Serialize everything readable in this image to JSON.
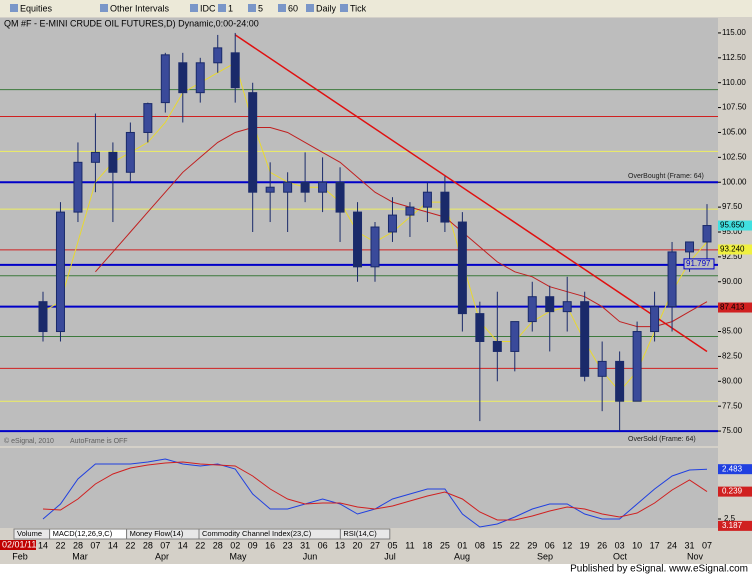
{
  "toolbar": {
    "items": [
      "Equities",
      "Other Intervals",
      "IDC",
      "1",
      "5",
      "60",
      "Daily",
      "Tick"
    ]
  },
  "chart_data": {
    "type": "candlestick",
    "title": "QM #F - E-MINI CRUDE OIL FUTURES,D) Dynamic,0:00-24:00",
    "categories": [
      "14",
      "22",
      "28",
      "07",
      "14",
      "22",
      "28",
      "07",
      "14",
      "22",
      "28",
      "02",
      "09",
      "16",
      "23",
      "31",
      "06",
      "13",
      "20",
      "27",
      "05",
      "11",
      "18",
      "25",
      "01",
      "08",
      "15",
      "22",
      "29",
      "06",
      "12",
      "19",
      "26",
      "03",
      "10",
      "17",
      "24",
      "31",
      "07"
    ],
    "months": [
      "Feb",
      "Mar",
      "Apr",
      "May",
      "Jun",
      "Jul",
      "Aug",
      "Sep",
      "Oct",
      "Nov"
    ],
    "cursor_date": "02/01/11",
    "open": [
      88,
      85,
      97,
      102,
      103,
      101,
      105,
      108,
      112,
      109,
      112,
      113,
      109,
      99,
      99,
      100,
      99,
      100,
      97,
      91.5,
      95,
      96.7,
      97.5,
      99,
      96,
      86.8,
      84,
      83,
      86,
      88.5,
      87,
      88,
      80.5,
      82,
      78,
      85,
      87.5,
      93,
      94
    ],
    "high": [
      89,
      98,
      104,
      106.9,
      104,
      106,
      108,
      113,
      113,
      112.5,
      114.8,
      115,
      110,
      102,
      101,
      103,
      102.5,
      101.5,
      98,
      96,
      98.5,
      98,
      100,
      100.6,
      97,
      88,
      89,
      86,
      90,
      89.6,
      90.5,
      89,
      84,
      83,
      86,
      89,
      94,
      94,
      97.8
    ],
    "low": [
      84,
      84,
      96,
      99,
      96,
      100,
      104,
      107,
      106,
      108,
      111,
      108,
      95,
      96,
      95,
      98,
      97,
      94,
      90,
      90,
      94,
      94.5,
      96,
      95,
      85,
      76,
      80,
      81,
      85,
      83,
      85,
      80,
      77,
      75,
      78,
      84,
      85,
      91,
      92
    ],
    "close": [
      85,
      97,
      102,
      103,
      101,
      105,
      107.9,
      112.8,
      109,
      112,
      113.5,
      109.5,
      99,
      99.5,
      100,
      99,
      100,
      97,
      91.5,
      95.5,
      96.7,
      97.5,
      99,
      96,
      86.8,
      84,
      83,
      86,
      88.5,
      87,
      88,
      80.5,
      82,
      78,
      85,
      87.5,
      93,
      94,
      95.65
    ],
    "series": [
      {
        "name": "MA fast",
        "color": "#e8d830",
        "values": [
          87,
          88,
          94,
          100,
          102,
          103,
          104,
          106,
          109,
          110,
          111,
          112,
          106,
          101,
          100,
          99.5,
          99.5,
          98,
          95,
          94,
          95,
          96.5,
          98,
          98,
          92,
          86,
          84,
          84,
          86,
          87,
          87.5,
          84,
          81,
          79,
          81,
          85,
          89,
          92,
          94
        ]
      },
      {
        "name": "MA slow",
        "color": "#c02020",
        "values": [
          null,
          null,
          null,
          91,
          93,
          95,
          97,
          99,
          101,
          102.5,
          104,
          105,
          105.5,
          105.5,
          105,
          104,
          103,
          102,
          100.5,
          99,
          98,
          97.5,
          97,
          96.5,
          95,
          93.5,
          92,
          91,
          90.5,
          89.5,
          89,
          88.5,
          87.5,
          86,
          85.5,
          85.5,
          86,
          87,
          88
        ]
      }
    ],
    "trendline": {
      "color": "#e01010",
      "start": [
        11,
        114.8
      ],
      "end": [
        38,
        83
      ]
    },
    "levels": [
      {
        "value": 109.3,
        "color": "#3c7a3c"
      },
      {
        "value": 106.6,
        "color": "#d02020"
      },
      {
        "value": 103.1,
        "color": "#eeee60"
      },
      {
        "value": 100,
        "color": "#0000c8"
      },
      {
        "value": 97.3,
        "color": "#eeee60"
      },
      {
        "value": 93.2,
        "color": "#d02020"
      },
      {
        "value": 91.7,
        "color": "#0000c8"
      },
      {
        "value": 90.6,
        "color": "#3c7a3c"
      },
      {
        "value": 87.5,
        "color": "#0000c8"
      },
      {
        "value": 84.5,
        "color": "#3c7a3c"
      },
      {
        "value": 81.3,
        "color": "#d02020"
      },
      {
        "value": 78,
        "color": "#eeee60"
      },
      {
        "value": 75,
        "color": "#0000c8"
      }
    ],
    "annotations": [
      "OverBought (Frame: 64)",
      "OverSold (Frame: 64)",
      "AutoFrame is OFF",
      "© eSignal, 2010"
    ],
    "price_labels": [
      {
        "value": 95.65,
        "label": "95.650",
        "color": "#40e0e0"
      },
      {
        "value": 93.24,
        "label": "93.240",
        "color": "#f0f040"
      },
      {
        "value": 87.413,
        "label": "87.413",
        "color": "#d02020"
      }
    ],
    "inner_label": {
      "value": 91.797,
      "label": "91.797"
    },
    "ylim": [
      73.5,
      116.5
    ],
    "yticks": [
      {
        "value": 75,
        "label": "75.00"
      },
      {
        "value": 77.5,
        "label": "77.50"
      },
      {
        "value": 80,
        "label": "80.00"
      },
      {
        "value": 82.5,
        "label": "82.50"
      },
      {
        "value": 85,
        "label": "85.00"
      },
      {
        "value": 87.5,
        "label": "87.50"
      },
      {
        "value": 90,
        "label": "90.00"
      },
      {
        "value": 92.5,
        "label": "92.50"
      },
      {
        "value": 95,
        "label": "95.00"
      },
      {
        "value": 97.5,
        "label": "97.50"
      },
      {
        "value": 100,
        "label": "100.00"
      },
      {
        "value": 102.5,
        "label": "102.50"
      },
      {
        "value": 105,
        "label": "105.00"
      },
      {
        "value": 107.5,
        "label": "107.50"
      },
      {
        "value": 110,
        "label": "110.00"
      },
      {
        "value": 112.5,
        "label": "112.50"
      },
      {
        "value": 115,
        "label": "115.00"
      }
    ]
  },
  "macd": {
    "series": [
      {
        "name": "MACD",
        "color": "#2040e0",
        "values": [
          -2.5,
          -1,
          1.5,
          3,
          3,
          3,
          3.2,
          3.5,
          3,
          2.8,
          3,
          2.5,
          0,
          -1.5,
          -1.5,
          -1,
          -0.5,
          -1,
          -2,
          -1.5,
          -0.5,
          0,
          0.5,
          0.5,
          -2,
          -3.3,
          -3,
          -2.3,
          -1.5,
          -1,
          -1,
          -2,
          -2.5,
          -2.5,
          -1,
          0.5,
          1.8,
          2.4,
          2.483
        ]
      },
      {
        "name": "Signal",
        "color": "#d02020",
        "values": [
          -1.5,
          -1.6,
          -0.5,
          1,
          2,
          2.6,
          2.9,
          3.1,
          3.2,
          3,
          2.9,
          2.8,
          1.8,
          0.5,
          -0.5,
          -1,
          -0.9,
          -0.9,
          -1.3,
          -1.5,
          -1.2,
          -0.7,
          -0.2,
          0.2,
          -0.5,
          -1.8,
          -2.6,
          -2.6,
          -2.2,
          -1.7,
          -1.3,
          -1.5,
          -2,
          -2.3,
          -1.9,
          -0.9,
          0.4,
          1.4,
          0.239
        ]
      }
    ],
    "ylim": [
      -3.4,
      4.6
    ],
    "yticks": [
      {
        "value": -2.5,
        "label": "2.5"
      }
    ],
    "value_labels": [
      {
        "value": 2.483,
        "label": "2.483",
        "color": "#2040e0"
      },
      {
        "value": 0.239,
        "label": "0.239",
        "color": "#d02020"
      },
      {
        "value": -3.187,
        "label": "3.187",
        "color": "#d02020"
      }
    ]
  },
  "tabs": [
    "Volume",
    "MACD(12,26,9,C)",
    "Money Flow(14)",
    "Commodity Channel Index(23,C)",
    "RSI(14,C)"
  ],
  "footer": "Published by eSignal. www.eSignal.com"
}
